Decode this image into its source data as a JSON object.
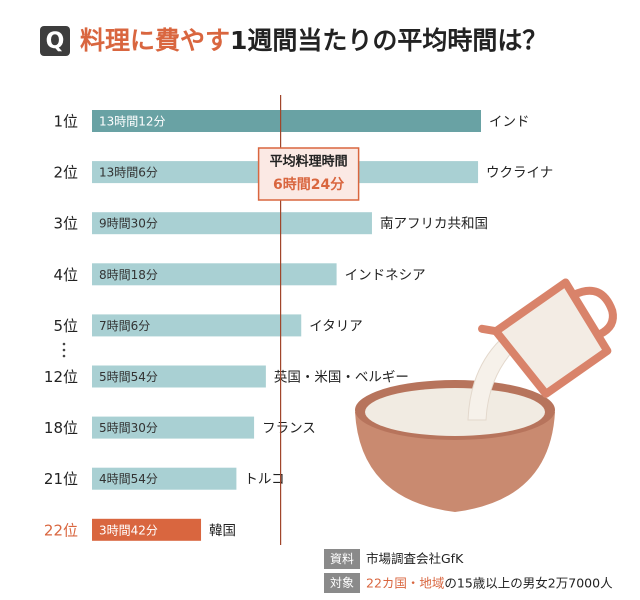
{
  "chart_data": {
    "type": "bar",
    "orientation": "horizontal",
    "title_highlight": "料理に費やす",
    "title_rest": "1週間当たりの平均時間は？",
    "categories": [
      "1位",
      "2位",
      "3位",
      "4位",
      "5位",
      "12位",
      "18位",
      "21位",
      "22位"
    ],
    "countries": [
      "インド",
      "ウクライナ",
      "南アフリカ共和国",
      "インドネシア",
      "イタリア",
      "英国・米国・ベルギー",
      "フランス",
      "トルコ",
      "韓国"
    ],
    "values": [
      792,
      786,
      570,
      498,
      426,
      354,
      330,
      294,
      222
    ],
    "value_labels": [
      "13時間12分",
      "13時間6分",
      "9時間30分",
      "8時間18分",
      "7時間6分",
      "5時間54分",
      "5時間30分",
      "4時間54分",
      "3時間42分"
    ],
    "colors": [
      "#69a2a4",
      "#a9d0d3",
      "#a9d0d3",
      "#a9d0d3",
      "#a9d0d3",
      "#a9d0d3",
      "#a9d0d3",
      "#a9d0d3",
      "#d9663f"
    ],
    "label_colors": [
      "#222222",
      "#222222",
      "#222222",
      "#222222",
      "#222222",
      "#222222",
      "#222222",
      "#222222",
      "#d9663f"
    ],
    "xlim": [
      0,
      792
    ],
    "average": {
      "label": "平均料理時間",
      "value": 384,
      "value_label": "6時間24分"
    },
    "source": {
      "tag": "資料",
      "text": "市場調査会社GfK"
    },
    "target": {
      "tag": "対象",
      "highlight": "22カ国・地域",
      "text": "の15歳以上の男女2万7000人"
    }
  }
}
